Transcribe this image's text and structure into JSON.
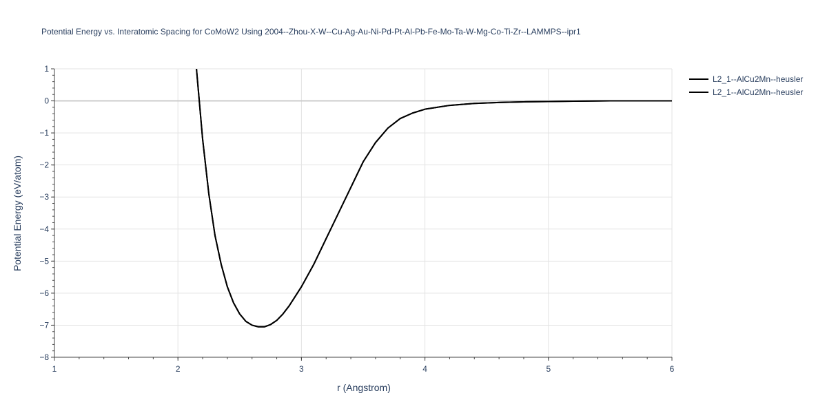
{
  "chart_data": {
    "type": "line",
    "title": "Potential Energy vs. Interatomic Spacing for CoMoW2 Using 2004--Zhou-X-W--Cu-Ag-Au-Ni-Pd-Pt-Al-Pb-Fe-Mo-Ta-W-Mg-Co-Ti-Zr--LAMMPS--ipr1",
    "xlabel": "r (Angstrom)",
    "ylabel": "Potential Energy (eV/atom)",
    "xlim": [
      1,
      6
    ],
    "ylim": [
      -8,
      1
    ],
    "xticks": [
      "1",
      "2",
      "3",
      "4",
      "5",
      "6"
    ],
    "yticks": [
      "1",
      "0",
      "−1",
      "−2",
      "−3",
      "−4",
      "−5",
      "−6",
      "−7",
      "−8"
    ],
    "grid": true,
    "legend_position": "top-right",
    "series": [
      {
        "name": "L2_1--AlCu2Mn--heusler",
        "color": "#000000",
        "x": [
          2.15,
          2.2,
          2.25,
          2.3,
          2.35,
          2.4,
          2.45,
          2.5,
          2.55,
          2.6,
          2.65,
          2.7,
          2.75,
          2.8,
          2.85,
          2.9,
          2.95,
          3.0,
          3.1,
          3.2,
          3.3,
          3.4,
          3.5,
          3.6,
          3.7,
          3.8,
          3.9,
          4.0,
          4.2,
          4.4,
          4.6,
          4.8,
          5.0,
          5.2,
          5.5,
          6.0
        ],
        "y": [
          1.0,
          -1.2,
          -2.9,
          -4.2,
          -5.1,
          -5.8,
          -6.3,
          -6.65,
          -6.88,
          -7.0,
          -7.05,
          -7.05,
          -6.98,
          -6.85,
          -6.65,
          -6.4,
          -6.1,
          -5.8,
          -5.1,
          -4.3,
          -3.5,
          -2.7,
          -1.9,
          -1.3,
          -0.85,
          -0.55,
          -0.38,
          -0.26,
          -0.14,
          -0.08,
          -0.05,
          -0.03,
          -0.02,
          -0.01,
          0.0,
          0.0
        ]
      },
      {
        "name": "L2_1--AlCu2Mn--heusler",
        "color": "#000000",
        "x": [
          2.15,
          2.2,
          2.25,
          2.3,
          2.35,
          2.4,
          2.45,
          2.5,
          2.55,
          2.6,
          2.65,
          2.7,
          2.75,
          2.8,
          2.85,
          2.9,
          2.95,
          3.0,
          3.1,
          3.2,
          3.3,
          3.4,
          3.5,
          3.6,
          3.7,
          3.8,
          3.9,
          4.0,
          4.2,
          4.4,
          4.6,
          4.8,
          5.0,
          5.2,
          5.5,
          6.0
        ],
        "y": [
          1.0,
          -1.2,
          -2.9,
          -4.2,
          -5.1,
          -5.8,
          -6.3,
          -6.65,
          -6.88,
          -7.0,
          -7.05,
          -7.05,
          -6.98,
          -6.85,
          -6.65,
          -6.4,
          -6.1,
          -5.8,
          -5.1,
          -4.3,
          -3.5,
          -2.7,
          -1.9,
          -1.3,
          -0.85,
          -0.55,
          -0.38,
          -0.26,
          -0.14,
          -0.08,
          -0.05,
          -0.03,
          -0.02,
          -0.01,
          0.0,
          0.0
        ]
      }
    ]
  }
}
